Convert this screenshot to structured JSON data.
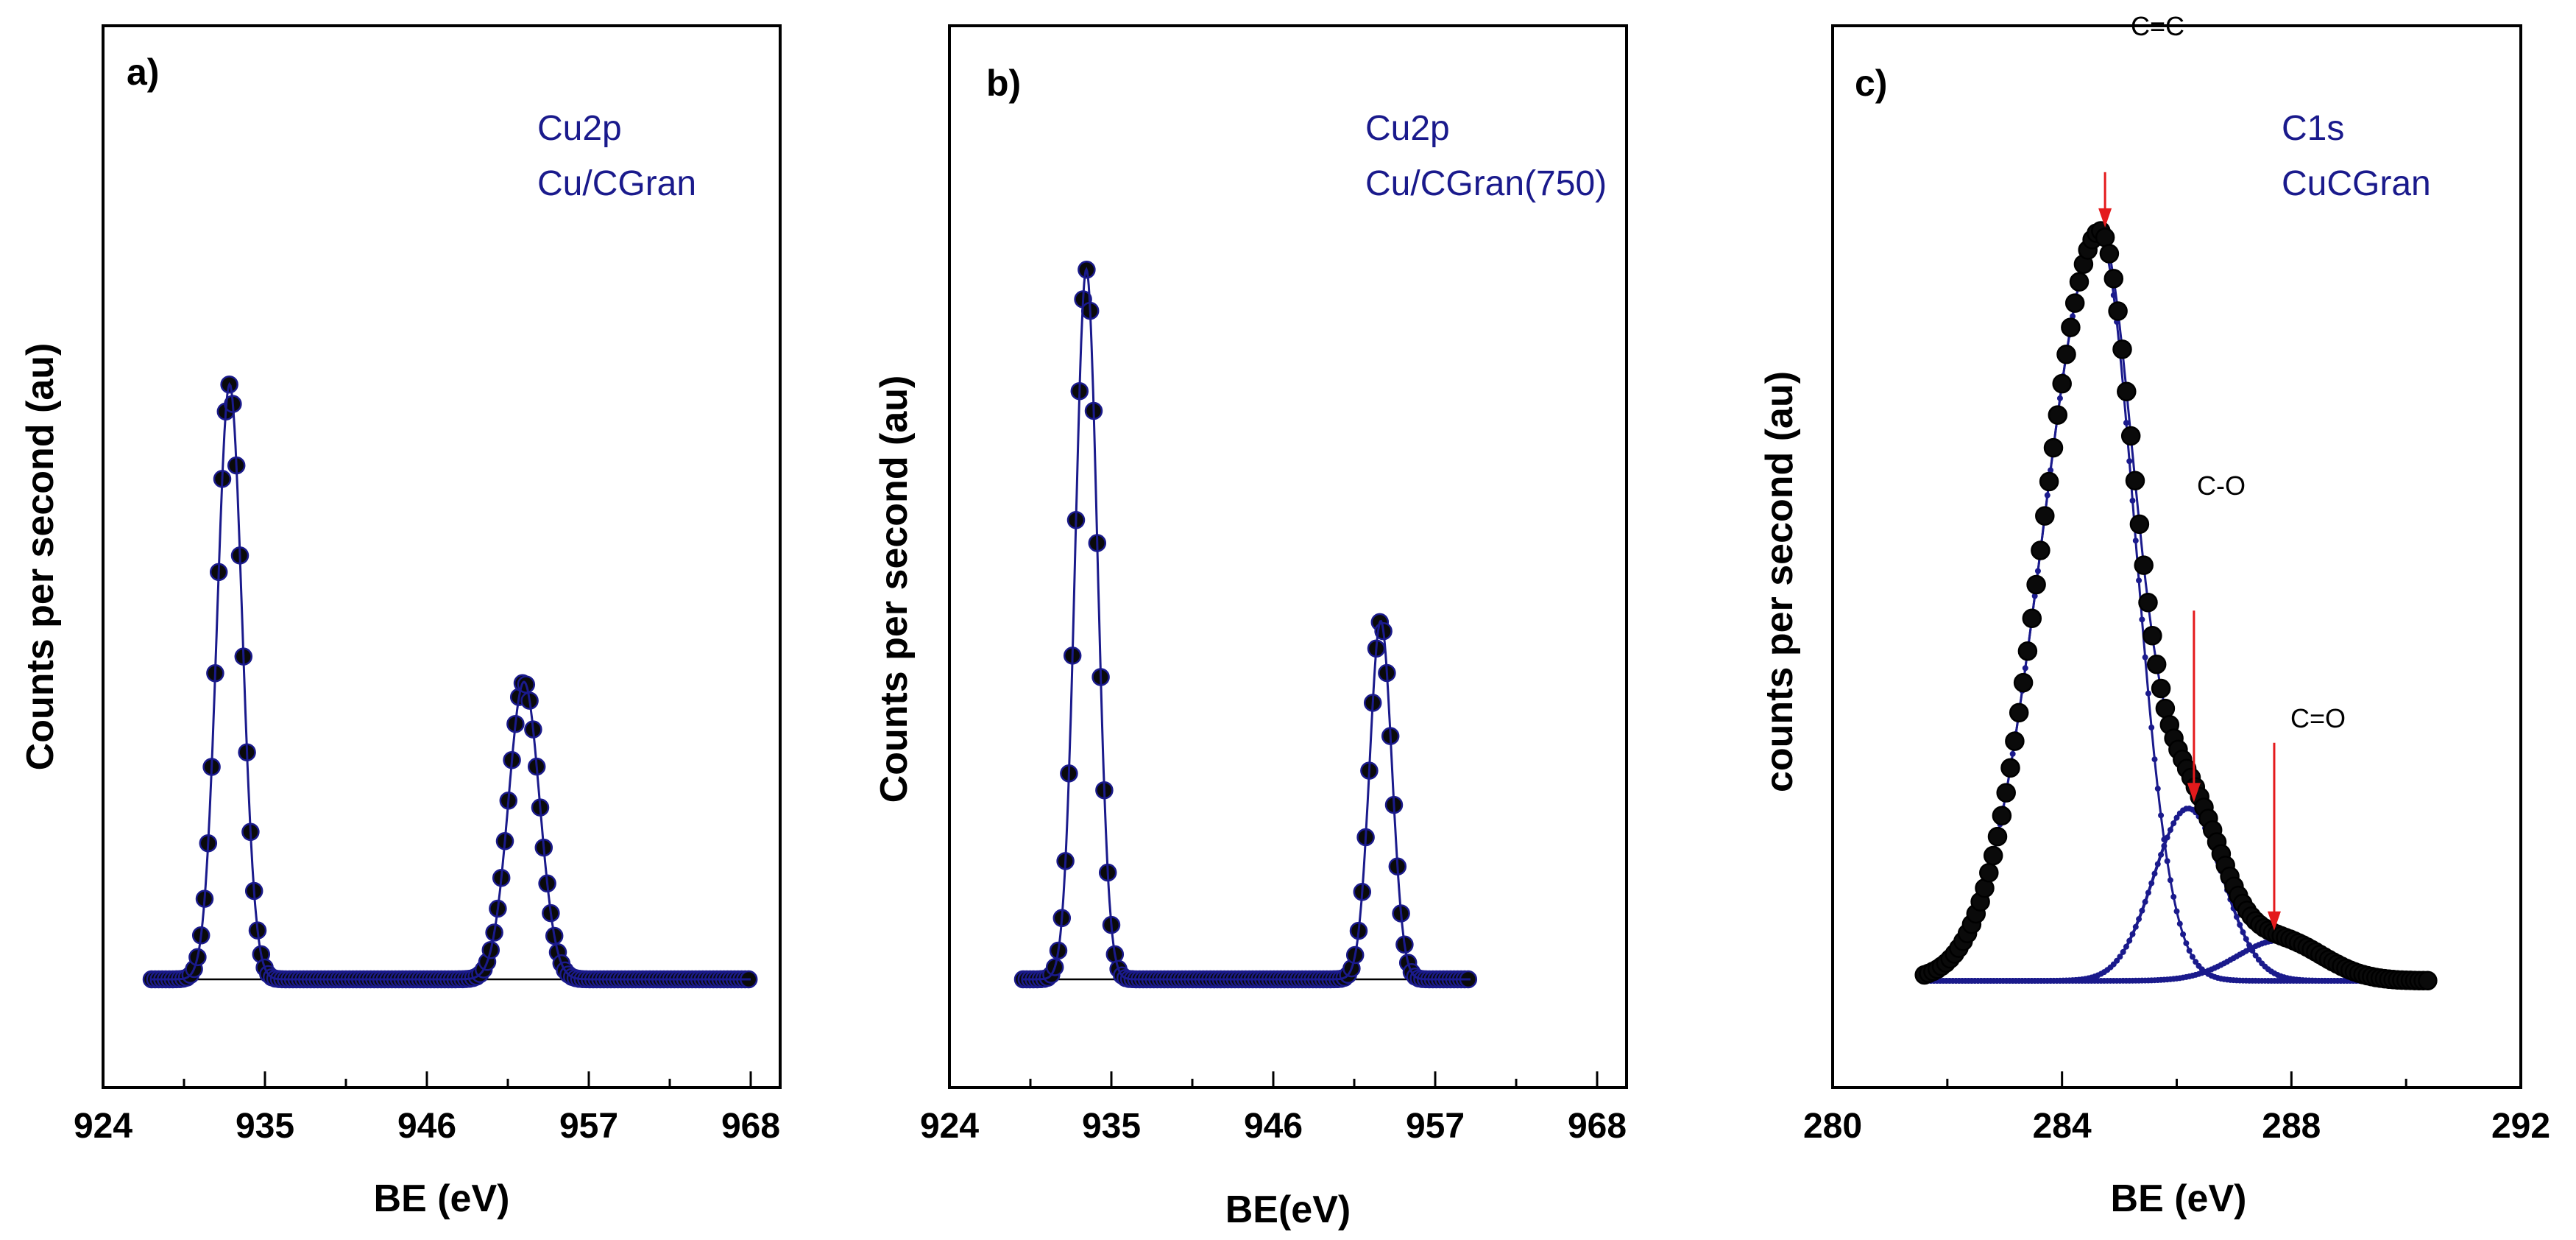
{
  "chart_data": [
    {
      "type": "line",
      "panel_label": "a)",
      "legend": [
        "Cu2p",
        "Cu/CGran"
      ],
      "xlabel": "BE (eV)",
      "ylabel": "Counts per second (au)",
      "xlim": [
        924,
        970
      ],
      "ylim": [
        0,
        1.2
      ],
      "xticks": [
        924,
        935,
        946,
        957,
        968
      ],
      "peaks": [
        {
          "center": 932.6,
          "height": 0.88,
          "width": 0.85
        },
        {
          "center": 952.6,
          "height": 0.44,
          "width": 1.05
        }
      ],
      "x_range": [
        927.3,
        968
      ],
      "markers": "black-filled-circles",
      "fit_color": "#1a1a8c",
      "baseline": true,
      "annotations": []
    },
    {
      "type": "line",
      "panel_label": "b)",
      "legend": [
        "Cu2p",
        "Cu/CGran(750)"
      ],
      "xlabel": "BE(eV)",
      "ylabel": "Counts per second (au)",
      "xlim": [
        924,
        970
      ],
      "ylim": [
        0,
        1.2
      ],
      "xticks": [
        924,
        935,
        946,
        957,
        968
      ],
      "peaks": [
        {
          "center": 933.3,
          "height": 1.05,
          "width": 0.75
        },
        {
          "center": 953.3,
          "height": 0.53,
          "width": 0.75
        }
      ],
      "x_range": [
        929.0,
        959.4
      ],
      "markers": "black-filled-circles",
      "fit_color": "#1a1a8c",
      "baseline": true,
      "annotations": []
    },
    {
      "type": "line",
      "panel_label": "c)",
      "legend": [
        "C1s",
        "CuCGran"
      ],
      "xlabel": "BE (eV)",
      "ylabel": "counts per second (au)",
      "xlim": [
        280,
        292
      ],
      "ylim": [
        0,
        1.2
      ],
      "xticks": [
        280,
        284,
        288,
        292
      ],
      "peaks": [
        {
          "center": 284.65,
          "height": 1.1,
          "width_left": 0.98,
          "width_right": 0.62
        },
        {
          "center": 286.2,
          "height": 0.255,
          "width": 0.6
        },
        {
          "center": 287.8,
          "height": 0.06,
          "width": 0.75
        }
      ],
      "x_range": [
        281.6,
        290.4
      ],
      "markers": "black-filled-circles",
      "fit_color": "#1a1a8c",
      "baseline": false,
      "annotations": [
        {
          "text": "C=C",
          "x": 284.75,
          "y": 1.11
        },
        {
          "text": "C-O",
          "x": 286.3,
          "y": 0.26
        },
        {
          "text": "C=O",
          "x": 287.7,
          "y": 0.07
        }
      ]
    }
  ]
}
